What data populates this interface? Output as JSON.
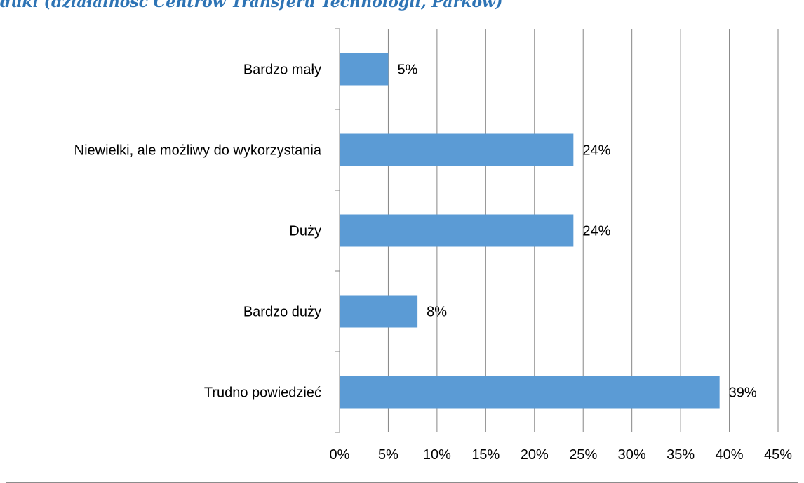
{
  "header": {
    "partial_title": "duki (działalność Centrów Transferu Technologii, Parków)"
  },
  "chart_data": {
    "type": "bar",
    "orientation": "horizontal",
    "categories": [
      "Bardzo mały",
      "Niewielki, ale możliwy do wykorzystania",
      "Duży",
      "Bardzo duży",
      "Trudno powiedzieć"
    ],
    "values": [
      5,
      24,
      24,
      8,
      39
    ],
    "data_labels": [
      "5%",
      "24%",
      "24%",
      "8%",
      "39%"
    ],
    "x_ticks": [
      "0%",
      "5%",
      "10%",
      "15%",
      "20%",
      "25%",
      "30%",
      "35%",
      "40%",
      "45%"
    ],
    "xlim": [
      0,
      45
    ],
    "xlabel": "",
    "ylabel": "",
    "grid": "vertical",
    "bar_color": "#5b9bd5",
    "gridline_color": "#868686"
  }
}
